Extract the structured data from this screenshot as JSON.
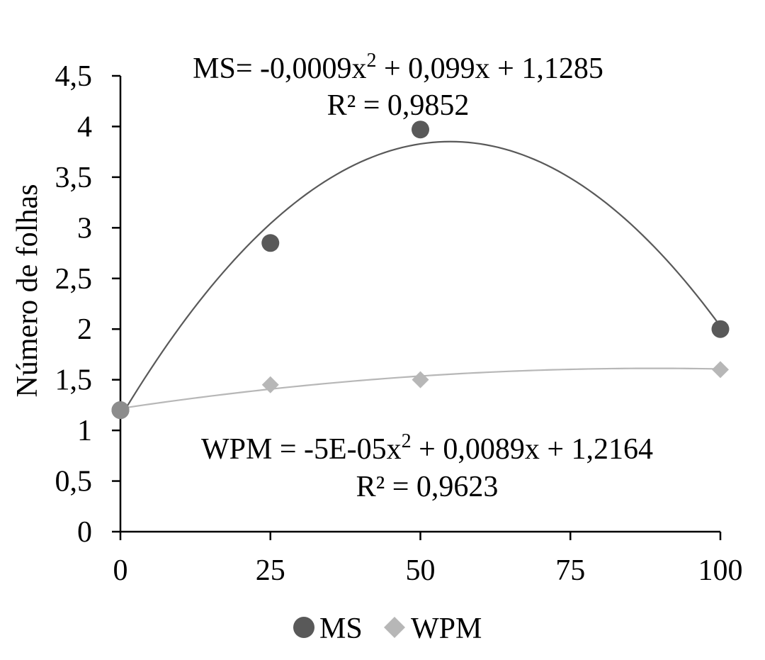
{
  "chart_data": {
    "type": "scatter",
    "title": "",
    "xlabel": "",
    "ylabel": "Número de folhas",
    "xlim": [
      0,
      100
    ],
    "ylim": [
      0,
      4.5
    ],
    "x_ticks": [
      0,
      25,
      50,
      75,
      100
    ],
    "x_tick_labels": [
      "0",
      "25",
      "50",
      "75",
      "100"
    ],
    "y_ticks": [
      0,
      0.5,
      1,
      1.5,
      2,
      2.5,
      3,
      3.5,
      4,
      4.5
    ],
    "y_tick_labels": [
      "0",
      "0,5",
      "1",
      "1,5",
      "2",
      "2,5",
      "3",
      "3,5",
      "4",
      "4,5"
    ],
    "grid": false,
    "legend_position": "bottom",
    "series": [
      {
        "name": "MS",
        "marker": "circle",
        "color": "#595959",
        "x": [
          0,
          25,
          50,
          100
        ],
        "y": [
          1.2,
          2.85,
          3.97,
          2.0
        ],
        "trendline": {
          "type": "polynomial",
          "coefficients": [
            -0.0009,
            0.099,
            1.1285
          ],
          "equation_main": "MS= -0,0009x",
          "equation_exp": "2",
          "equation_rest": " + 0,099x + 1,1285",
          "r_squared_label": "R² = 0,9852"
        }
      },
      {
        "name": "WPM",
        "marker": "diamond",
        "color": "#b7b7b7",
        "x": [
          0,
          25,
          50,
          100
        ],
        "y": [
          1.2,
          1.45,
          1.5,
          1.6
        ],
        "trendline": {
          "type": "polynomial",
          "coefficients": [
            -5e-05,
            0.0089,
            1.2164
          ],
          "equation_main": "WPM = -5E-05x",
          "equation_exp": "2",
          "equation_rest": " + 0,0089x + 1,2164",
          "r_squared_label": "R² = 0,9623"
        }
      }
    ]
  }
}
